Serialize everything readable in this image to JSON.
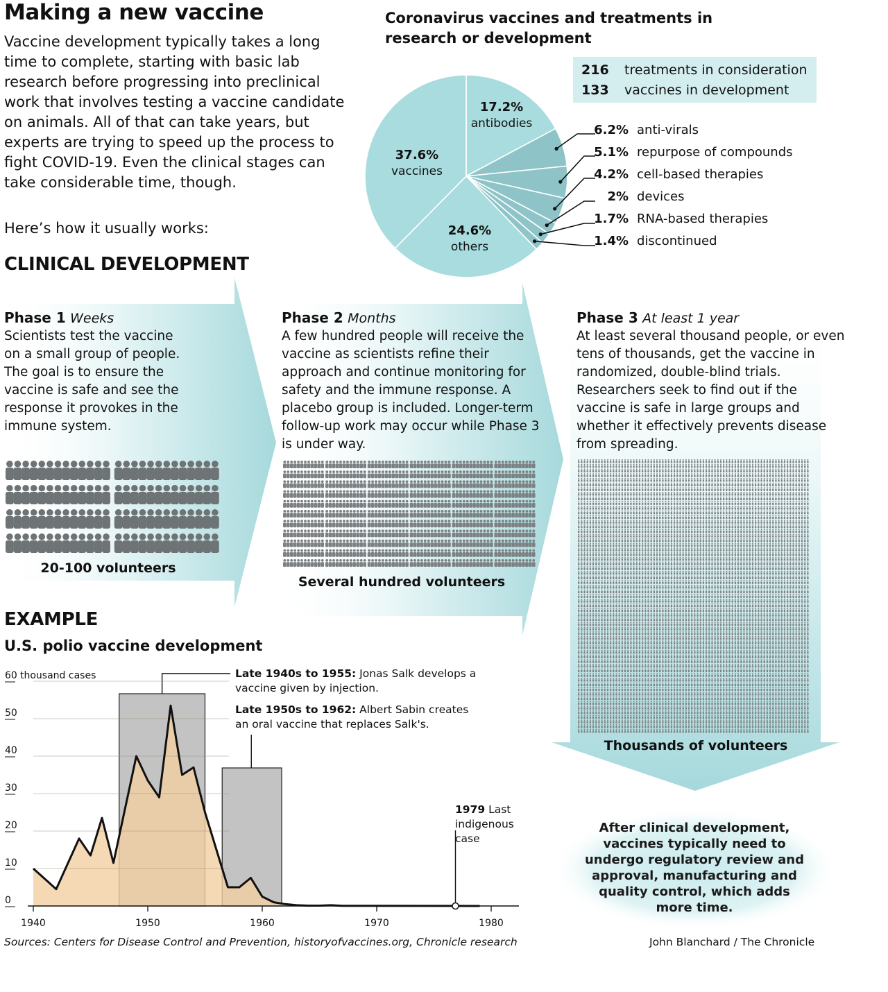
{
  "title": "Making a new vaccine",
  "intro": "Vaccine development typically takes a long time to complete, starting with basic lab research before progressing into preclinical work that involves testing a vaccine candidate on animals. All of that can take years, but experts are trying to speed up the process to fight COVID-19. Even the clinical stages can take considerable time, though.",
  "intro_how": "Here’s how it usually works:",
  "clinical_heading": "CLINICAL DEVELOPMENT",
  "phases": [
    {
      "name": "Phase 1",
      "duration": "Weeks",
      "text": "Scientists test the vaccine on a small group of people. The goal is to ensure the vaccine is safe and see the response it provokes in the immune system.",
      "volunteers": "20-100 volunteers"
    },
    {
      "name": "Phase 2",
      "duration": "Months",
      "text": "A few hundred people will receive the vaccine as scientists refine their approach and continue monitoring for safety and the immune response. A placebo group is included. Longer-term follow-up work may occur while Phase 3 is under way.",
      "volunteers": "Several hundred volunteers"
    },
    {
      "name": "Phase 3",
      "duration": "At least 1 year",
      "text": "At least several thousand people, or even tens of thousands, get the vaccine in randomized, double-blind trials. Researchers seek to find out if the vaccine is safe in large groups and whether it effectively prevents disease from spreading.",
      "volunteers": "Thousands of volunteers"
    }
  ],
  "after_note": "After clinical development, vaccines typically need to undergo regulatory review and approval, manufacturing and quality control, which adds more time.",
  "example_heading": "EXAMPLE",
  "example_subheading": "U.S. polio vaccine development",
  "colors": {
    "pie_main": "#a8dcde",
    "pie_small": "#8ec4c8",
    "arrow": "#a6d9dc",
    "area": "#f2cfa2",
    "box": "#b8b8b8"
  },
  "chart_data": [
    {
      "type": "pie",
      "title": "Coronavirus vaccines and treatments in research or development",
      "stats": [
        {
          "value": "216",
          "label": "treatments in consideration"
        },
        {
          "value": "133",
          "label": "vaccines in development"
        }
      ],
      "slices": [
        {
          "label": "antibodies",
          "value": 17.2,
          "display": "17.2%"
        },
        {
          "label": "anti-virals",
          "value": 6.2,
          "display": "6.2%"
        },
        {
          "label": "repurpose of compounds",
          "value": 5.1,
          "display": "5.1%"
        },
        {
          "label": "cell-based therapies",
          "value": 4.2,
          "display": "4.2%"
        },
        {
          "label": "devices",
          "value": 2.0,
          "display": "2%"
        },
        {
          "label": "RNA-based therapies",
          "value": 1.7,
          "display": "1.7%"
        },
        {
          "label": "discontinued",
          "value": 1.4,
          "display": "1.4%"
        },
        {
          "label": "others",
          "value": 24.6,
          "display": "24.6%"
        },
        {
          "label": "vaccines",
          "value": 37.6,
          "display": "37.6%"
        }
      ]
    },
    {
      "type": "area",
      "title": "U.S. polio vaccine development",
      "ylabel": "thousand cases",
      "xlim": [
        1938,
        1982
      ],
      "ylim": [
        0,
        60
      ],
      "xticks": [
        1940,
        1950,
        1960,
        1970,
        1980
      ],
      "yticks": [
        0,
        10,
        20,
        30,
        40,
        50,
        60
      ],
      "x": [
        1940,
        1942,
        1944,
        1945,
        1946,
        1947,
        1949,
        1950,
        1951,
        1952,
        1953,
        1954,
        1955,
        1956,
        1957,
        1958,
        1959,
        1960,
        1961,
        1962,
        1963,
        1964,
        1965,
        1966,
        1967,
        1970,
        1975,
        1979
      ],
      "y": [
        10,
        4.5,
        18,
        13.5,
        23.5,
        11.5,
        40,
        33.5,
        29,
        53.5,
        35,
        37,
        25,
        15,
        5,
        5,
        7.5,
        2.5,
        1,
        0.5,
        0.2,
        0.1,
        0.1,
        0.2,
        0.05,
        0.05,
        0.02,
        0.01
      ],
      "periods": [
        {
          "start": 1947.5,
          "end": 1955,
          "label_bold": "Late 1940s to 1955:",
          "label": "Jonas Salk develops a vaccine given by injection."
        },
        {
          "start": 1956.5,
          "end": 1961.7,
          "label_bold": "Late 1950s to 1962:",
          "label": "Albert Sabin creates an oral vaccine that replaces Salk's."
        }
      ],
      "event": {
        "x": 1979,
        "label_bold": "1979",
        "label": "Last indigenous case"
      }
    }
  ],
  "sources": "Sources: Centers for Disease Control and Prevention, historyofvaccines.org, Chronicle research",
  "credit": "John Blanchard / The Chronicle"
}
